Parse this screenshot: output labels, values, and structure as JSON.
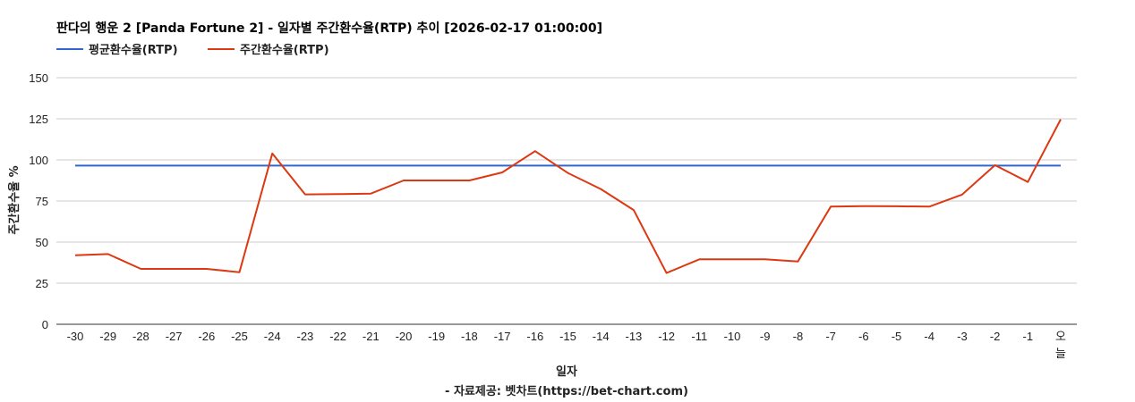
{
  "chart_data": {
    "type": "line",
    "title": "판다의 행운 2 [Panda Fortune 2] - 일자별 주간환수율(RTP) 추이 [2026-02-17 01:00:00]",
    "xlabel": "일자",
    "ylabel": "주간환수율 %",
    "footer": "- 자료제공: 벳차트(https://bet-chart.com)",
    "legend_position": "top-left",
    "grid": true,
    "ylim": [
      0,
      150
    ],
    "yticks": [
      "0",
      "25",
      "50",
      "75",
      "100",
      "125",
      "150"
    ],
    "categories": [
      "-30",
      "-29",
      "-28",
      "-27",
      "-26",
      "-25",
      "-24",
      "-23",
      "-22",
      "-21",
      "-20",
      "-19",
      "-18",
      "-17",
      "-16",
      "-15",
      "-14",
      "-13",
      "-12",
      "-11",
      "-10",
      "-9",
      "-8",
      "-7",
      "-6",
      "-5",
      "-4",
      "-3",
      "-2",
      "-1",
      "오늘"
    ],
    "series": [
      {
        "name": "평균환수율(RTP)",
        "color": "#3366cc",
        "values": [
          96.5,
          96.5,
          96.5,
          96.5,
          96.5,
          96.5,
          96.5,
          96.5,
          96.5,
          96.5,
          96.5,
          96.5,
          96.5,
          96.5,
          96.5,
          96.5,
          96.5,
          96.5,
          96.5,
          96.5,
          96.5,
          96.5,
          96.5,
          96.5,
          96.5,
          96.5,
          96.5,
          96.5,
          96.5,
          96.5,
          96.5
        ]
      },
      {
        "name": "주간환수율(RTP)",
        "color": "#dc3912",
        "values": [
          42,
          42.7,
          33.7,
          33.7,
          33.7,
          31.7,
          103.9,
          79,
          79.2,
          79.5,
          87.5,
          87.5,
          87.5,
          92.4,
          105.3,
          92,
          82.3,
          69.5,
          31.2,
          39.5,
          39.5,
          39.5,
          38.2,
          71.6,
          71.9,
          71.8,
          71.6,
          78.9,
          96.8,
          86.6,
          124.7
        ]
      }
    ]
  }
}
